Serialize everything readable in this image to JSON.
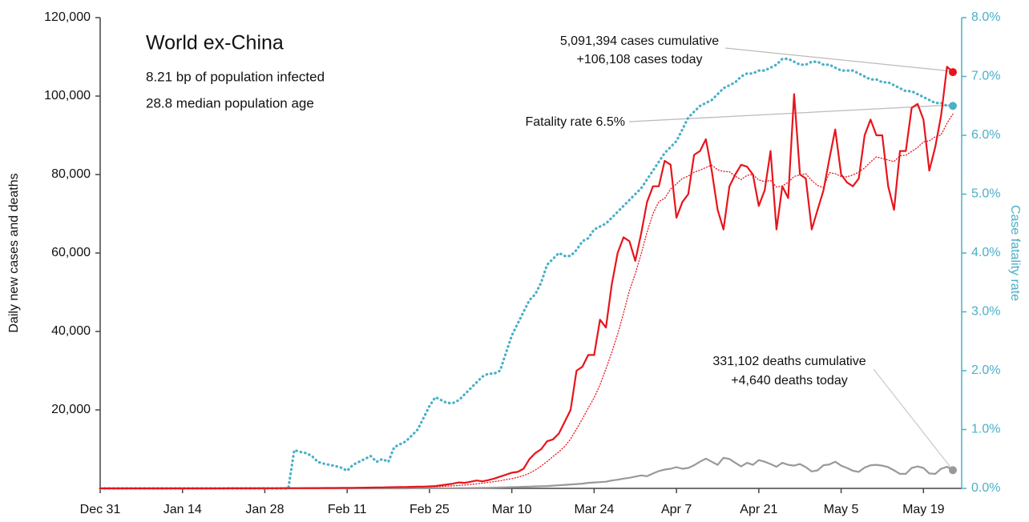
{
  "chart_data": {
    "type": "line",
    "title": "World ex-China",
    "subtitle": [
      "8.21 bp of population infected",
      "28.8 median population age"
    ],
    "ylabel": "Daily new cases and deaths",
    "y2label": "Case fatality rate",
    "annotations": {
      "cases": [
        "5,091,394 cases cumulative",
        "+106,108 cases today"
      ],
      "fatality": "Fatality rate 6.5%",
      "deaths": [
        "331,102 deaths cumulative",
        "+4,640 deaths today"
      ]
    },
    "categories": [
      "Dec 31",
      null,
      null,
      null,
      null,
      null,
      null,
      null,
      null,
      null,
      null,
      null,
      null,
      null,
      "Jan 14",
      null,
      null,
      null,
      null,
      null,
      null,
      null,
      null,
      null,
      null,
      null,
      null,
      null,
      "Jan 28",
      null,
      null,
      null,
      null,
      null,
      null,
      null,
      null,
      null,
      null,
      null,
      null,
      null,
      "Feb 11",
      null,
      null,
      null,
      null,
      null,
      null,
      null,
      null,
      null,
      null,
      null,
      null,
      null,
      "Feb 25",
      null,
      null,
      null,
      null,
      null,
      null,
      null,
      null,
      null,
      null,
      null,
      null,
      null,
      "Mar 10",
      null,
      null,
      null,
      null,
      null,
      null,
      null,
      null,
      null,
      null,
      null,
      null,
      null,
      "Mar 24",
      null,
      null,
      null,
      null,
      null,
      null,
      null,
      null,
      null,
      null,
      null,
      null,
      null,
      "Apr 7",
      null,
      null,
      null,
      null,
      null,
      null,
      null,
      null,
      null,
      null,
      null,
      null,
      null,
      "Apr 21",
      null,
      null,
      null,
      null,
      null,
      null,
      null,
      null,
      null,
      null,
      null,
      null,
      null,
      "May 5",
      null,
      null,
      null,
      null,
      null,
      null,
      null,
      null,
      null,
      null,
      null,
      null,
      null,
      "May 19",
      null,
      null,
      null,
      null,
      null
    ],
    "series": [
      {
        "color": "#4ab0c8",
        "style": "dotted",
        "width": 3.2,
        "axis": "y2",
        "end_dot": true,
        "values": [
          0,
          0,
          0,
          0,
          0,
          0,
          0,
          0,
          0,
          0,
          0,
          0,
          0,
          0,
          0,
          0,
          0,
          0,
          0,
          0,
          0,
          0,
          0,
          0,
          0,
          0,
          0,
          0,
          0,
          0,
          0,
          0,
          0,
          0.65,
          0.62,
          0.6,
          0.55,
          0.45,
          0.42,
          0.4,
          0.38,
          0.35,
          0.3,
          0.4,
          0.45,
          0.5,
          0.55,
          0.45,
          0.5,
          0.45,
          0.7,
          0.75,
          0.8,
          0.9,
          1.0,
          1.2,
          1.4,
          1.55,
          1.5,
          1.45,
          1.45,
          1.5,
          1.6,
          1.7,
          1.8,
          1.9,
          1.95,
          1.95,
          2.0,
          2.3,
          2.6,
          2.8,
          3.0,
          3.2,
          3.3,
          3.5,
          3.8,
          3.9,
          4.0,
          3.95,
          3.95,
          4.05,
          4.2,
          4.25,
          4.4,
          4.45,
          4.5,
          4.6,
          4.7,
          4.8,
          4.9,
          5.0,
          5.1,
          5.25,
          5.4,
          5.55,
          5.7,
          5.8,
          5.9,
          6.1,
          6.3,
          6.4,
          6.5,
          6.55,
          6.6,
          6.7,
          6.8,
          6.85,
          6.9,
          7.0,
          7.05,
          7.05,
          7.1,
          7.1,
          7.15,
          7.2,
          7.3,
          7.3,
          7.25,
          7.2,
          7.2,
          7.25,
          7.25,
          7.2,
          7.2,
          7.15,
          7.1,
          7.1,
          7.1,
          7.05,
          7.0,
          6.95,
          6.95,
          6.9,
          6.9,
          6.85,
          6.8,
          6.75,
          6.75,
          6.7,
          6.65,
          6.6,
          6.55,
          6.55,
          6.5,
          6.5
        ]
      },
      {
        "color": "#999999",
        "style": "solid",
        "width": 2.2,
        "end_dot": true,
        "values": [
          0,
          0,
          0,
          0,
          0,
          0,
          0,
          0,
          0,
          0,
          0,
          0,
          0,
          0,
          0,
          0,
          0,
          0,
          0,
          0,
          0,
          0,
          0,
          0,
          0,
          0,
          0,
          0,
          0,
          0,
          0,
          0,
          0,
          0,
          0,
          0,
          0,
          0,
          0,
          0,
          1,
          1,
          2,
          2,
          3,
          3,
          5,
          6,
          8,
          10,
          5,
          8,
          10,
          12,
          15,
          18,
          22,
          28,
          34,
          40,
          50,
          60,
          70,
          90,
          110,
          130,
          150,
          180,
          220,
          260,
          300,
          350,
          400,
          450,
          500,
          550,
          600,
          700,
          800,
          900,
          1000,
          1100,
          1200,
          1400,
          1500,
          1600,
          1700,
          2000,
          2200,
          2500,
          2700,
          3000,
          3300,
          3100,
          3800,
          4400,
          4800,
          5000,
          5400,
          5000,
          5200,
          5900,
          6800,
          7600,
          6800,
          6000,
          7800,
          7500,
          6500,
          5600,
          6500,
          6000,
          7200,
          6800,
          6200,
          5500,
          6500,
          6000,
          5800,
          6200,
          5400,
          4300,
          4600,
          5900,
          6100,
          6800,
          5800,
          5200,
          4500,
          4200,
          5300,
          5900,
          6000,
          5800,
          5400,
          4600,
          3700,
          3700,
          5200,
          5600,
          5200,
          3800,
          3700,
          5000,
          5500,
          4640
        ]
      },
      {
        "color": "#e8141c",
        "style": "dotted",
        "width": 1.3,
        "values": [
          0,
          0,
          0,
          0,
          0,
          0,
          0,
          0,
          0,
          0,
          0,
          0,
          0,
          0,
          0,
          0,
          0,
          0,
          0,
          0,
          5,
          7,
          10,
          13,
          16,
          20,
          24,
          27,
          31,
          36,
          41,
          46,
          51,
          57,
          63,
          69,
          74,
          80,
          86,
          91,
          96,
          104,
          113,
          124,
          136,
          149,
          163,
          180,
          197,
          217,
          237,
          257,
          280,
          303,
          329,
          357,
          389,
          431,
          490,
          564,
          650,
          760,
          860,
          1000,
          1150,
          1340,
          1530,
          1710,
          1930,
          2230,
          2500,
          2820,
          3270,
          3870,
          4700,
          5710,
          6840,
          8140,
          9310,
          10690,
          12600,
          15100,
          17700,
          20500,
          23100,
          26400,
          30500,
          34700,
          39300,
          44700,
          50400,
          54700,
          59800,
          65300,
          70000,
          73100,
          73900,
          76300,
          77600,
          79000,
          79600,
          80600,
          81100,
          81800,
          82400,
          81200,
          80800,
          80700,
          79600,
          78700,
          79800,
          80000,
          78600,
          78200,
          78500,
          76800,
          77100,
          78000,
          79500,
          79900,
          80200,
          78500,
          77200,
          76700,
          80500,
          80200,
          79500,
          79400,
          79900,
          80600,
          81700,
          83200,
          84500,
          84100,
          83700,
          83300,
          84800,
          84900,
          85900,
          86900,
          88300,
          88600,
          89600,
          90100,
          93100,
          95400
        ]
      },
      {
        "color": "#e8141c",
        "style": "solid",
        "width": 2.2,
        "end_dot": true,
        "values": [
          0,
          0,
          0,
          0,
          0,
          0,
          0,
          0,
          0,
          0,
          0,
          0,
          0,
          0,
          0,
          0,
          0,
          0,
          0,
          0,
          10,
          10,
          20,
          20,
          20,
          30,
          30,
          40,
          40,
          50,
          50,
          60,
          60,
          70,
          70,
          80,
          80,
          90,
          100,
          100,
          100,
          120,
          130,
          150,
          160,
          180,
          200,
          220,
          250,
          280,
          300,
          320,
          350,
          380,
          420,
          450,
          500,
          600,
          800,
          1000,
          1200,
          1500,
          1400,
          1700,
          2000,
          1800,
          2100,
          2500,
          3000,
          3500,
          4000,
          4200,
          5000,
          7500,
          9000,
          10000,
          12000,
          12500,
          14000,
          17000,
          20000,
          30000,
          31000,
          34000,
          34000,
          43000,
          41000,
          52000,
          60000,
          64000,
          63000,
          58000,
          65000,
          73000,
          77000,
          77000,
          83500,
          82500,
          69000,
          73000,
          75000,
          85000,
          86000,
          89000,
          81000,
          71000,
          66000,
          77000,
          80000,
          82500,
          82000,
          80000,
          72000,
          76000,
          86000,
          66000,
          77000,
          74000,
          100500,
          80000,
          79000,
          66000,
          71000,
          76000,
          84000,
          91500,
          80000,
          78000,
          77000,
          79000,
          90000,
          94000,
          90000,
          90000,
          77000,
          71000,
          86000,
          86000,
          97000,
          98000,
          94000,
          81000,
          87000,
          95000,
          107500,
          106108
        ]
      }
    ],
    "ylim": [
      0,
      120000
    ],
    "yticks": [
      {
        "value": 20000,
        "label": "20,000"
      },
      {
        "value": 40000,
        "label": "40,000"
      },
      {
        "value": 60000,
        "label": "60,000"
      },
      {
        "value": 80000,
        "label": "80,000"
      },
      {
        "value": 100000,
        "label": "100,000"
      },
      {
        "value": 120000,
        "label": "120,000"
      }
    ],
    "y2lim": [
      0,
      8
    ],
    "y2ticks": [
      {
        "value": 0,
        "label": "0.0%"
      },
      {
        "value": 1,
        "label": "1.0%"
      },
      {
        "value": 2,
        "label": "2.0%"
      },
      {
        "value": 3,
        "label": "3.0%"
      },
      {
        "value": 4,
        "label": "4.0%"
      },
      {
        "value": 5,
        "label": "5.0%"
      },
      {
        "value": 6,
        "label": "6.0%"
      },
      {
        "value": 7,
        "label": "7.0%"
      },
      {
        "value": 8,
        "label": "8.0%"
      }
    ],
    "grid": false
  }
}
